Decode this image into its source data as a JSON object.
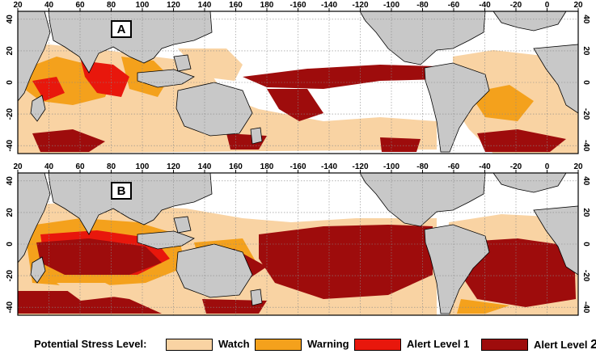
{
  "panels": [
    {
      "id": "A",
      "label": "A"
    },
    {
      "id": "B",
      "label": "B"
    }
  ],
  "lon_ticks": [
    "20",
    "40",
    "60",
    "80",
    "100",
    "120",
    "140",
    "160",
    "180",
    "-160",
    "-140",
    "-120",
    "-100",
    "-80",
    "-60",
    "-40",
    "-20",
    "0",
    "20"
  ],
  "lat_ticks": [
    "40",
    "20",
    "0",
    "-20",
    "-40"
  ],
  "legend": {
    "title": "Potential Stress Level:",
    "items": [
      {
        "label": "Watch",
        "color": "#f9d3a3"
      },
      {
        "label": "Warning",
        "color": "#f4a11c"
      },
      {
        "label": "Alert Level 1",
        "color": "#e8170c"
      },
      {
        "label_prefix": "Alert Level ",
        "label_number": "2",
        "color": "#9e0c0c"
      }
    ]
  },
  "colors": {
    "land": "#c8c8c8",
    "ocean": "#ffffff",
    "grid": "#888888"
  }
}
